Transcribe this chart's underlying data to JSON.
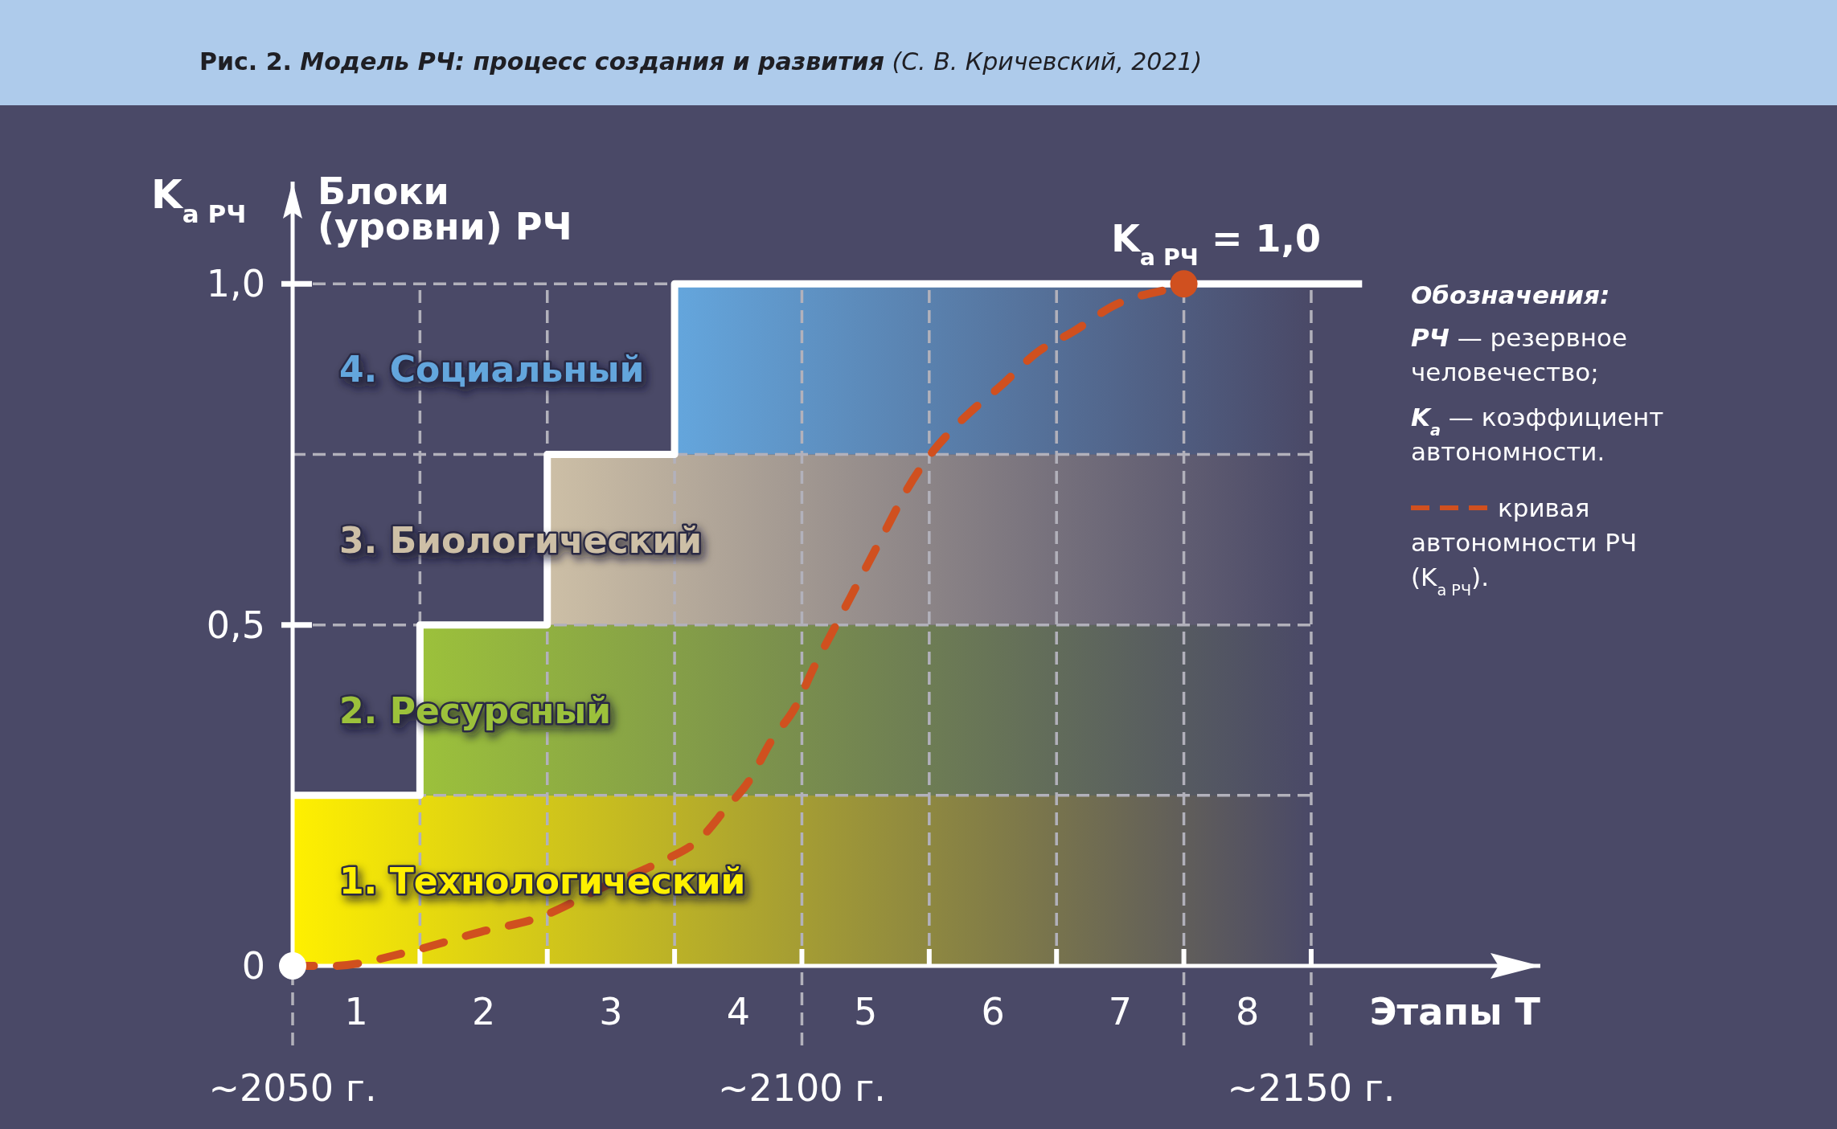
{
  "chart_data": {
    "type": "line",
    "title": "Рис. 2. Модель РЧ: процесс создания и развития (С. В. Кричевский, 2021)",
    "xlabel": "Этапы T",
    "ylabel": "K$_{а РЧ}$",
    "legend_title": "Обозначения:",
    "legend": "right",
    "grid": true,
    "xlim": [
      0.5,
      10.3
    ],
    "xticks": [
      1,
      2,
      3,
      4,
      5,
      6,
      7,
      8,
      {
        "value": 1.5,
        "label": null
      },
      {
        "value": 2.5,
        "label": null
      },
      {
        "value": 3.5,
        "label": null
      },
      {
        "value": 4.5,
        "label": null
      },
      {
        "value": 5.5,
        "label": null
      },
      {
        "value": 6.5,
        "label": null
      },
      {
        "value": 7.5,
        "label": null
      },
      {
        "value": 8.5,
        "label": null
      }
    ],
    "x2lim": [
      2050,
      2172.5
    ],
    "x2ticks": [
      {
        "value": 2050,
        "label": "~2050 г."
      },
      {
        "value": 2100,
        "label": "~2100 г."
      },
      {
        "value": 2137.5,
        "label": null
      },
      {
        "value": 2150,
        "label": "~2150 г."
      }
    ],
    "ylim": [
      0,
      1.15
    ],
    "yticks": [
      0,
      {
        "value": 0.25,
        "label": null
      },
      {
        "value": 0.5,
        "label": "0,5"
      },
      {
        "value": 0.75,
        "label": null
      },
      {
        "value": 1,
        "label": "1,0"
      }
    ],
    "bands": [
      {
        "axis": "y",
        "from": 0,
        "to": 0.25,
        "label": "1. Технологический",
        "color": "#fff000"
      },
      {
        "axis": "y",
        "from": 0.25,
        "to": 0.5,
        "label": "2. Ресурсный",
        "color": "#9cc13b"
      },
      {
        "axis": "y",
        "from": 0.5,
        "to": 0.75,
        "label": "3. Биологический",
        "color": "#cdbfa6"
      },
      {
        "axis": "y",
        "from": 0.75,
        "to": 1,
        "label": "4. Социальный",
        "color": "#64a6dd"
      }
    ],
    "series": [
      {
        "type": "step",
        "color": "#ffffff",
        "line_style": "solid",
        "x": [
          0.5,
          1.5,
          2.5,
          3.5,
          8.9
        ],
        "values": [
          0.25,
          0.5,
          0.75,
          1,
          1
        ]
      },
      {
        "name": "кривая автономности РЧ (K$_{а РЧ}$).",
        "color": "#d0501f",
        "line_style": "dashed",
        "marker": "none",
        "x": [
          0.5,
          0.82,
          1.4,
          1.98,
          2.42,
          2.99,
          3.36,
          3.72,
          3.9,
          4.08,
          4.26,
          4.45,
          4.6,
          4.74,
          4.88,
          5.02,
          5.16,
          5.33,
          5.47,
          5.7,
          5.87,
          6.06,
          6.35,
          6.63,
          6.97,
          7.33
        ],
        "values": [
          0,
          0,
          0.02,
          0.05,
          0.07,
          0.12,
          0.15,
          0.19,
          0.23,
          0.27,
          0.33,
          0.38,
          0.44,
          0.49,
          0.54,
          0.59,
          0.64,
          0.7,
          0.74,
          0.79,
          0.82,
          0.85,
          0.9,
          0.93,
          0.97,
          0.99
        ]
      },
      {
        "type": "scatter",
        "marker": "circle",
        "colors": [
          "#ffffff",
          "#d0501f"
        ],
        "x": [
          0.5,
          7.5
        ],
        "values": [
          0,
          1
        ]
      }
    ],
    "annotations": [
      "Блоки (уровни) РЧ",
      "РЧ — резервное человечество;",
      "K$_{а}$ — коэффициент автономности.",
      {
        "text": "K$_{а РЧ}$ = 1,0",
        "x": 7.5,
        "y": 1
      }
    ]
  }
}
